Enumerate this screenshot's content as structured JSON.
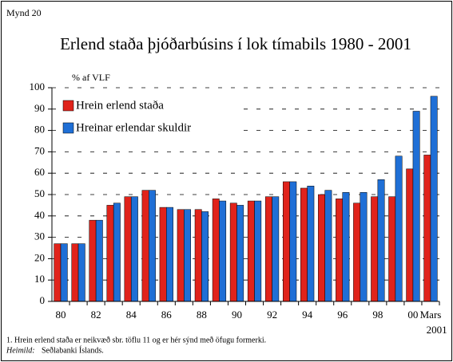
{
  "chart_data": {
    "type": "bar",
    "figure_label": "Mynd 20",
    "title": "Erlend staða þjóðarbúsins í lok tímabils 1980 - 2001",
    "y_label": "% af VLF",
    "categories": [
      "80",
      null,
      "82",
      null,
      "84",
      null,
      "86",
      null,
      "88",
      null,
      "90",
      null,
      "92",
      null,
      "94",
      null,
      "96",
      null,
      "98",
      null,
      "00",
      "Mars 2001"
    ],
    "series": [
      {
        "name": "Hrein erlend staða",
        "color": "#e0231b",
        "values": [
          27,
          27,
          38,
          45,
          49,
          52,
          44,
          43,
          43,
          48,
          46,
          47,
          49,
          56,
          53,
          50,
          48,
          46,
          49,
          49,
          62,
          68.5
        ]
      },
      {
        "name": "Hreinar erlendar skuldir",
        "color": "#1f6fd6",
        "values": [
          27,
          27,
          38,
          46,
          49,
          52,
          44,
          43,
          42,
          47,
          45,
          47,
          49,
          56,
          54,
          52,
          51,
          51,
          57,
          68,
          89,
          96
        ]
      }
    ],
    "ylim": [
      0,
      100
    ],
    "yticks": [
      0,
      10,
      20,
      30,
      40,
      50,
      60,
      70,
      80,
      90,
      100
    ],
    "grid": true,
    "legend": "top-left",
    "footnote": "1. Hrein erlend staða er neikvæð sbr. töflu 11 og er hér sýnd með öfugu formerki.",
    "source_label": "Heimild:",
    "source": "Seðlabanki Íslands."
  }
}
